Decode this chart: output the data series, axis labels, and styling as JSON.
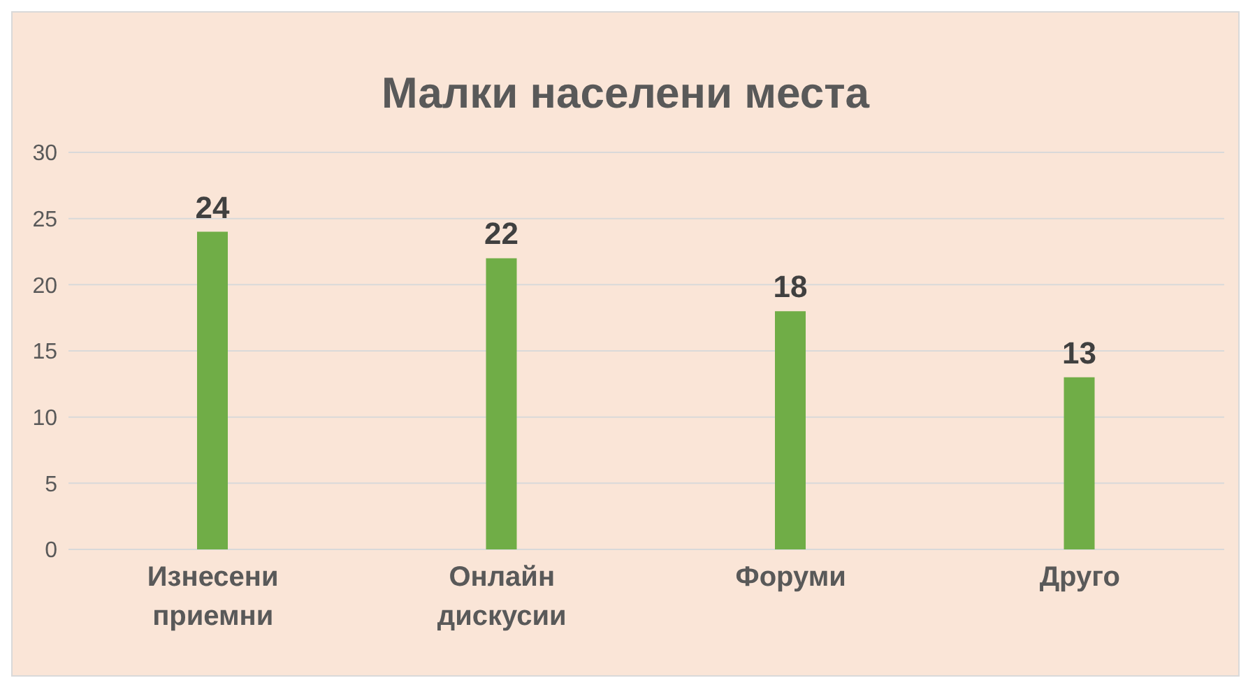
{
  "chart_data": {
    "type": "bar",
    "title": "Малки населени места",
    "categories": [
      "Изнесени приемни",
      "Онлайн дискусии",
      "Форуми",
      "Друго"
    ],
    "values": [
      24,
      22,
      18,
      13
    ],
    "color": "#70ad47",
    "ylim": [
      0,
      30
    ],
    "yticks": [
      0,
      5,
      10,
      15,
      20,
      25,
      30
    ],
    "grid": "y",
    "data_labels": true
  }
}
